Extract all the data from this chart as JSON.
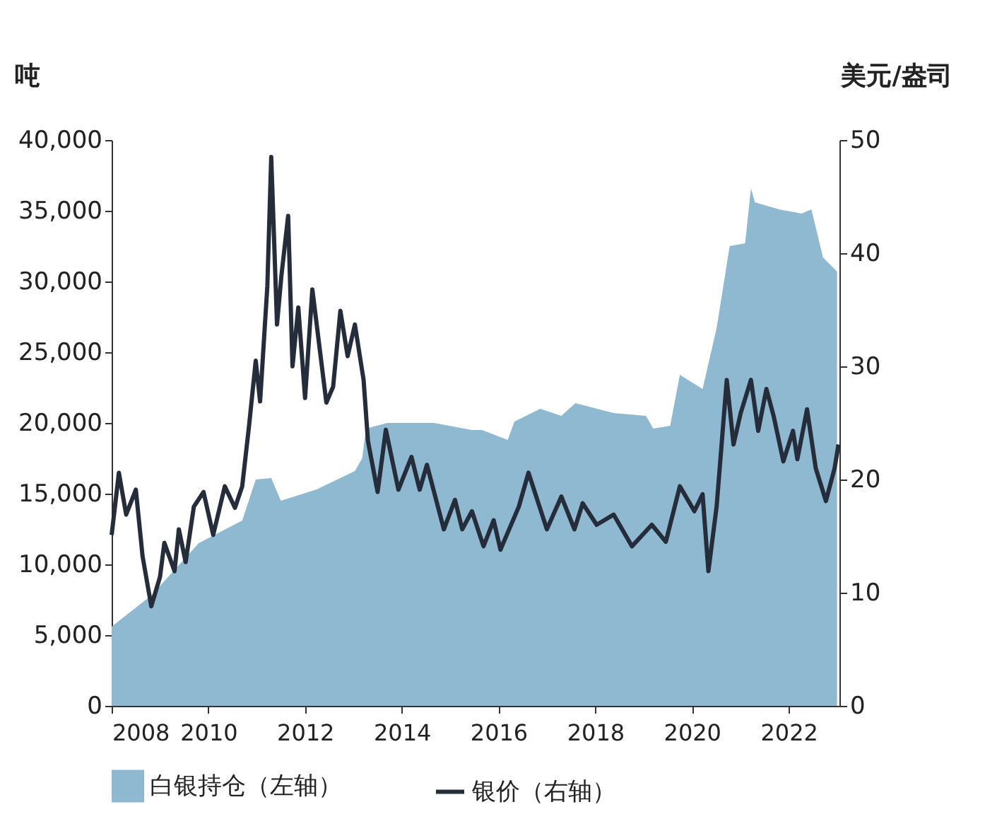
{
  "chart_data": {
    "type": "area",
    "xlabel": null,
    "ylabel": "吨",
    "y2label": "美元/盎司",
    "xlim": [
      2008,
      2023.05
    ],
    "xticks": [
      2008,
      2010,
      2012,
      2014,
      2016,
      2018,
      2020,
      2022
    ],
    "ylim": [
      0,
      40000
    ],
    "yticks": [
      0,
      {
        "value": 5000,
        "label": "5,000"
      },
      {
        "value": 10000,
        "label": "10,000"
      },
      {
        "value": 15000,
        "label": "15,000"
      },
      {
        "value": 20000,
        "label": "20,000"
      },
      {
        "value": 25000,
        "label": "25,000"
      },
      {
        "value": 30000,
        "label": "30,000"
      },
      {
        "value": 35000,
        "label": "35,000"
      },
      {
        "value": 40000,
        "label": "40,000"
      }
    ],
    "y2lim": [
      0,
      50
    ],
    "y2ticks": [
      0,
      10,
      20,
      30,
      40,
      50
    ],
    "grid": false,
    "legend": "bottom",
    "series": [
      {
        "name": "白银持仓（左轴）",
        "color": "#8fb9d1",
        "x": [
          2008.0,
          2008.82,
          2009.8,
          2010.7,
          2010.98,
          2011.3,
          2011.5,
          2012.24,
          2013.03,
          2013.18,
          2013.26,
          2013.7,
          2014.67,
          2015.45,
          2015.66,
          2016.19,
          2016.33,
          2016.86,
          2017.3,
          2017.59,
          2018.38,
          2019.05,
          2019.2,
          2019.55,
          2019.75,
          2020.22,
          2020.51,
          2020.78,
          2021.1,
          2021.22,
          2021.3,
          2021.8,
          2022.27,
          2022.47,
          2022.71,
          2023.0
        ],
        "values": [
          5600,
          7800,
          11500,
          13100,
          16000,
          16100,
          14500,
          15300,
          16600,
          17500,
          19600,
          20000,
          20000,
          19500,
          19500,
          18800,
          20100,
          21000,
          20500,
          21400,
          20700,
          20500,
          19600,
          19800,
          23400,
          22400,
          26700,
          32500,
          32700,
          36600,
          35600,
          35100,
          34800,
          35100,
          31700,
          30700
        ]
      },
      {
        "name": "银价（右轴）",
        "type": "line",
        "axis": "y2",
        "color": "#252c3a",
        "x": [
          2008.0,
          2008.15,
          2008.3,
          2008.5,
          2008.64,
          2008.82,
          2009.0,
          2009.09,
          2009.3,
          2009.39,
          2009.53,
          2009.7,
          2009.9,
          2010.1,
          2010.34,
          2010.55,
          2010.7,
          2010.84,
          2010.98,
          2011.07,
          2011.22,
          2011.3,
          2011.42,
          2011.51,
          2011.65,
          2011.74,
          2011.86,
          2012.0,
          2012.15,
          2012.44,
          2012.58,
          2012.73,
          2012.88,
          2013.03,
          2013.21,
          2013.3,
          2013.5,
          2013.67,
          2013.93,
          2014.2,
          2014.37,
          2014.52,
          2014.87,
          2015.1,
          2015.25,
          2015.45,
          2015.69,
          2015.9,
          2016.04,
          2016.42,
          2016.62,
          2017.0,
          2017.3,
          2017.57,
          2017.74,
          2018.03,
          2018.38,
          2018.76,
          2019.17,
          2019.46,
          2019.75,
          2020.05,
          2020.22,
          2020.34,
          2020.51,
          2020.72,
          2020.86,
          2021.01,
          2021.22,
          2021.37,
          2021.54,
          2021.69,
          2021.89,
          2022.09,
          2022.18,
          2022.38,
          2022.56,
          2022.77,
          2022.95,
          2023.03
        ],
        "values": [
          15.1,
          20.6,
          16.9,
          19.1,
          13.2,
          8.8,
          11.4,
          14.4,
          11.9,
          15.6,
          12.7,
          17.6,
          18.9,
          15.1,
          19.4,
          17.5,
          19.4,
          24.7,
          30.5,
          26.9,
          37.1,
          48.5,
          33.7,
          38.0,
          43.3,
          30.0,
          35.2,
          27.2,
          36.8,
          26.8,
          28.2,
          34.9,
          30.9,
          33.7,
          28.8,
          23.4,
          18.9,
          24.4,
          19.1,
          22.0,
          19.1,
          21.3,
          15.6,
          18.2,
          15.6,
          17.2,
          14.1,
          16.4,
          13.8,
          17.6,
          20.6,
          15.6,
          18.5,
          15.6,
          17.9,
          16.0,
          16.9,
          14.1,
          16.0,
          14.5,
          19.4,
          17.2,
          18.7,
          11.9,
          17.6,
          28.8,
          23.1,
          25.9,
          28.8,
          24.3,
          28.0,
          25.6,
          21.6,
          24.3,
          21.8,
          26.2,
          21.0,
          18.1,
          21.0,
          23.1
        ]
      }
    ]
  }
}
